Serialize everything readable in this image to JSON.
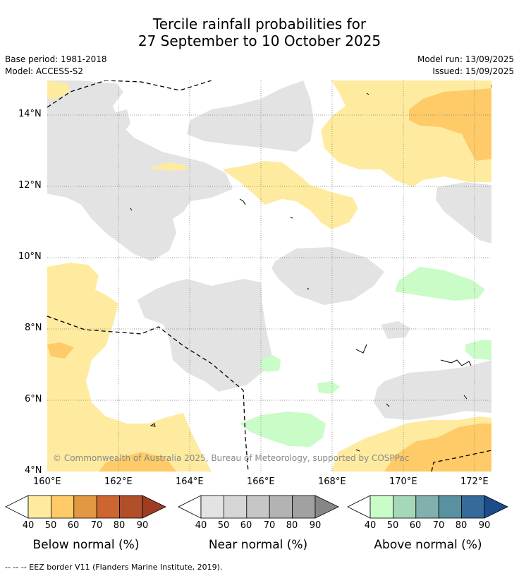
{
  "header": {
    "title_line1": "Tercile rainfall probabilities for",
    "title_line2": "27 September to 10 October 2025",
    "base_period": "Base period: 1981-2018",
    "model": "Model: ACCESS-S2",
    "model_run": "Model run: 13/09/2025",
    "issued": "Issued: 15/09/2025"
  },
  "map": {
    "lat_ticks": [
      "14°N",
      "12°N",
      "10°N",
      "8°N",
      "6°N",
      "4°N"
    ],
    "lon_ticks": [
      "160°E",
      "162°E",
      "164°E",
      "166°E",
      "168°E",
      "170°E",
      "172°E"
    ],
    "copyright": "© Commonwealth of Australia 2025, Bureau of Meteorology, supported by COSPPac",
    "colors": {
      "below_50": "#feeb9f",
      "below_60": "#fecb68",
      "near_50": "#e3e3e3",
      "above_50": "#c9fcc6",
      "eez_line": "#000000"
    }
  },
  "legends": [
    {
      "title": "Below normal (%)",
      "ticks": [
        "40",
        "50",
        "60",
        "70",
        "80",
        "90"
      ],
      "colors": [
        "#ffffff",
        "#feeb9f",
        "#fecb68",
        "#e29742",
        "#cc6530",
        "#b14f2a",
        "#9e3d22"
      ]
    },
    {
      "title": "Near normal (%)",
      "ticks": [
        "40",
        "50",
        "60",
        "70",
        "80",
        "90"
      ],
      "colors": [
        "#ffffff",
        "#e3e3e3",
        "#d6d6d6",
        "#c6c6c6",
        "#b3b3b3",
        "#a1a1a1",
        "#878787"
      ]
    },
    {
      "title": "Above normal (%)",
      "ticks": [
        "40",
        "50",
        "60",
        "70",
        "80",
        "90"
      ],
      "colors": [
        "#ffffff",
        "#c9fcc6",
        "#a5d8b8",
        "#80b1ad",
        "#5991a0",
        "#356a9a",
        "#1b4d8b"
      ]
    }
  ],
  "footer": {
    "eez_note": "--  --  -- EEZ border V11 (Flanders Marine Institute, 2019)."
  }
}
